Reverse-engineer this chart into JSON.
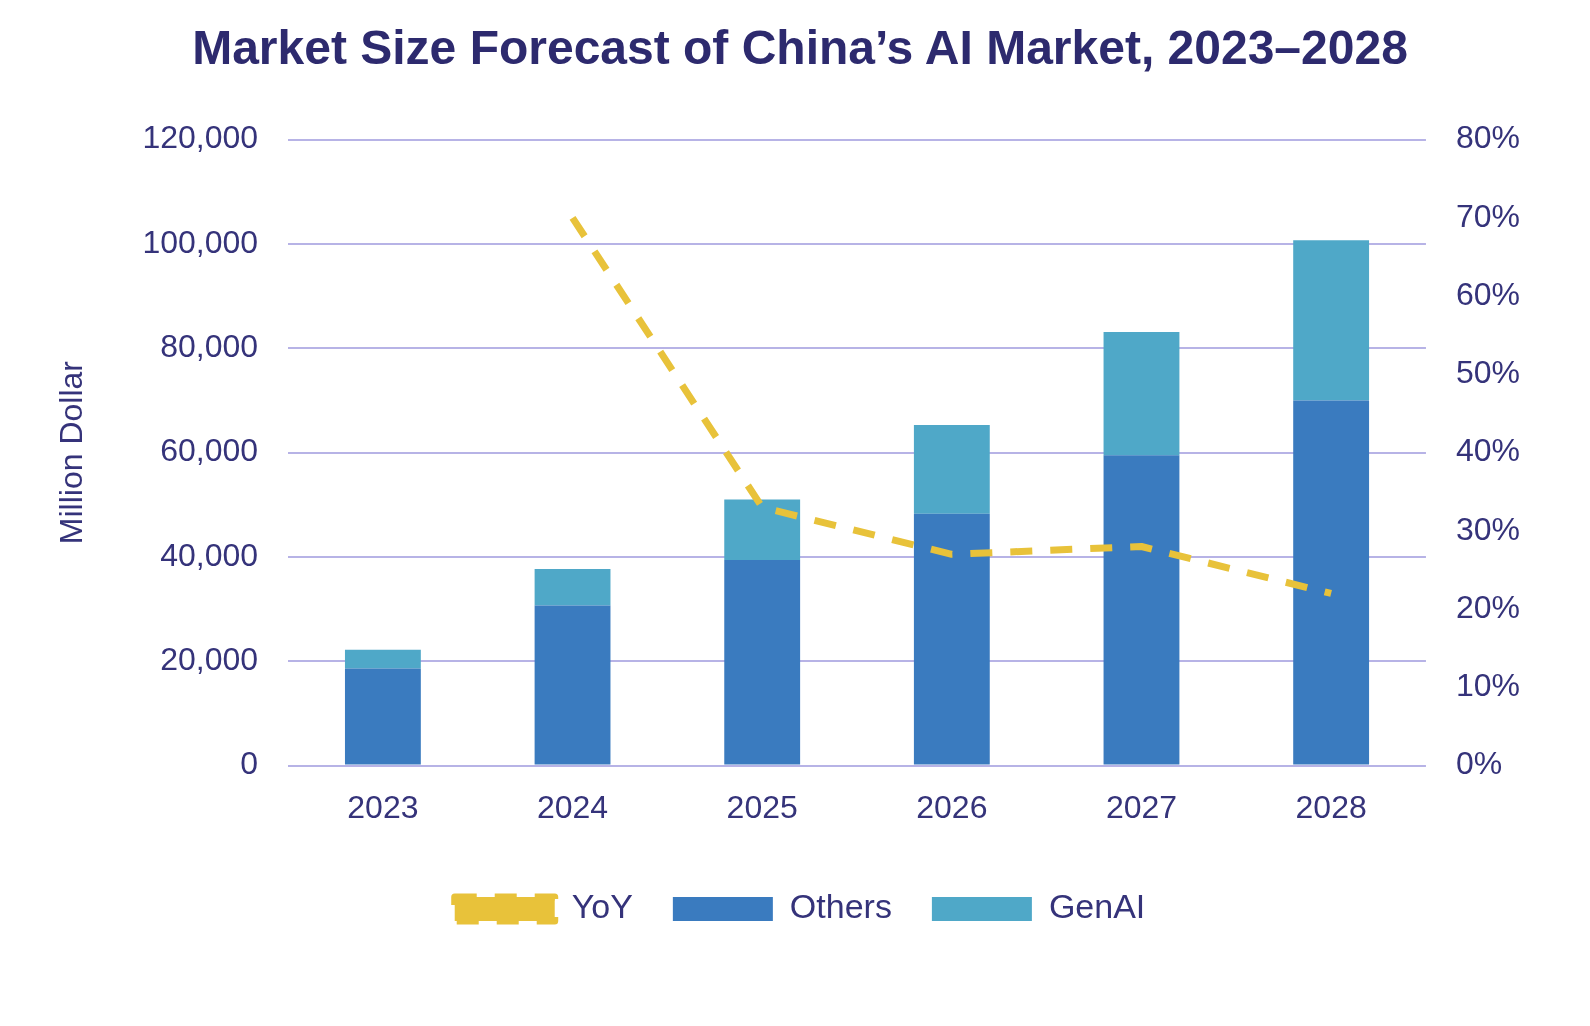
{
  "chart_data": {
    "type": "bar",
    "title": "Market Size Forecast of China’s AI Market, 2023–2028",
    "ylabel": "Million Dollar",
    "categories": [
      "2023",
      "2024",
      "2025",
      "2026",
      "2027",
      "2028"
    ],
    "stacked": true,
    "series": [
      {
        "name": "Others",
        "color": "#3a7bbf",
        "values": [
          18600,
          30700,
          39400,
          48300,
          59500,
          70000
        ]
      },
      {
        "name": "GenAI",
        "color": "#4fa8c8",
        "values": [
          3600,
          7000,
          11600,
          17000,
          23600,
          30700
        ]
      },
      {
        "name": "YoY",
        "type": "line",
        "axis": "y2",
        "color": "#e8c23a",
        "line_style": "dashed",
        "marker": "none",
        "values": [
          null,
          70,
          33,
          27,
          28,
          22
        ]
      }
    ],
    "ylim": [
      0,
      120000
    ],
    "yticks": [
      {
        "value": 0,
        "label": "0"
      },
      {
        "value": 20000,
        "label": "20,000"
      },
      {
        "value": 40000,
        "label": "40,000"
      },
      {
        "value": 60000,
        "label": "60,000"
      },
      {
        "value": 80000,
        "label": "80,000"
      },
      {
        "value": 100000,
        "label": "100,000"
      },
      {
        "value": 120000,
        "label": "120,000"
      }
    ],
    "y2lim": [
      0,
      80
    ],
    "y2ticks": [
      {
        "value": 0,
        "label": "0%"
      },
      {
        "value": 10,
        "label": "10%"
      },
      {
        "value": 20,
        "label": "20%"
      },
      {
        "value": 30,
        "label": "30%"
      },
      {
        "value": 40,
        "label": "40%"
      },
      {
        "value": 50,
        "label": "50%"
      },
      {
        "value": 60,
        "label": "60%"
      },
      {
        "value": 70,
        "label": "70%"
      },
      {
        "value": 80,
        "label": "80%"
      }
    ],
    "grid": "y",
    "legend": "bottom"
  }
}
